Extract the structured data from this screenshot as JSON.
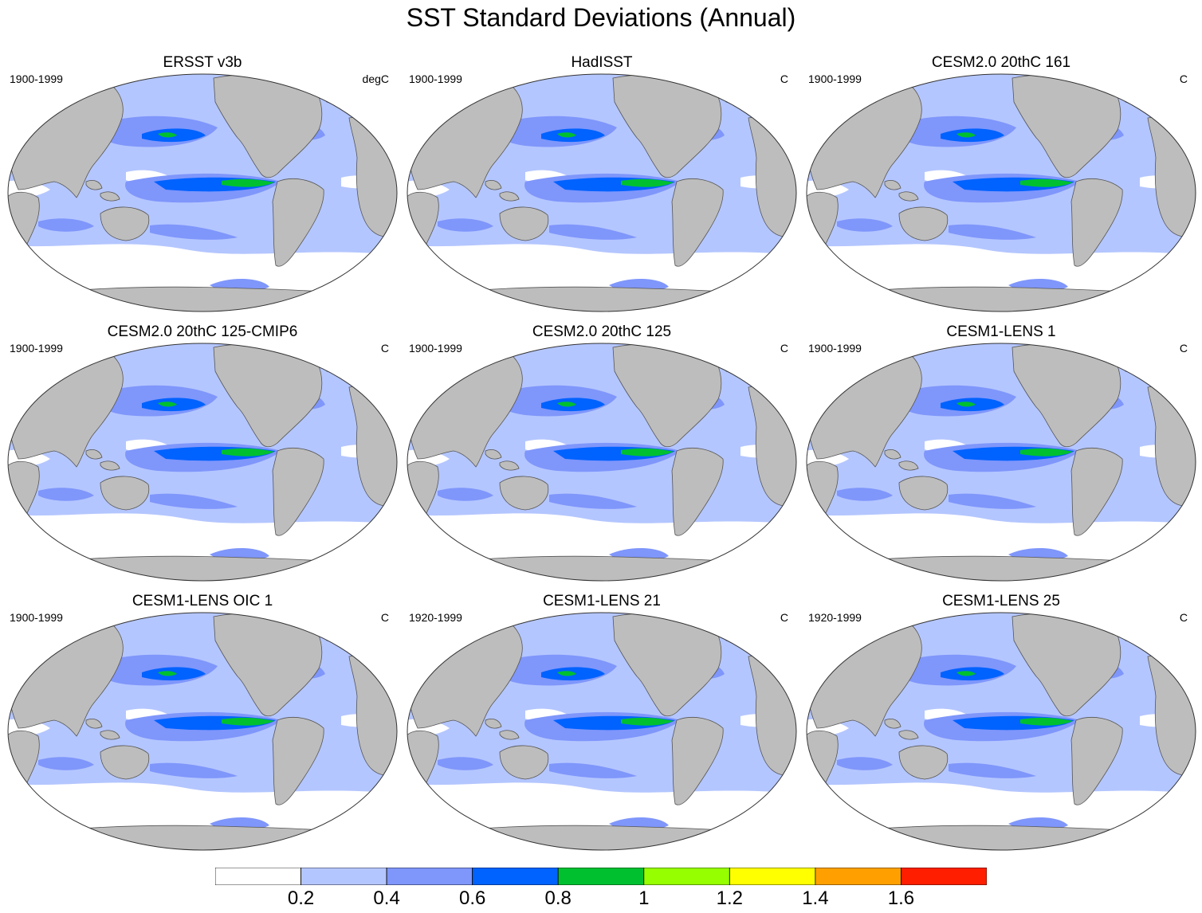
{
  "title": "SST Standard Deviations (Annual)",
  "panels": [
    {
      "title": "ERSST v3b",
      "period": "1900-1999",
      "unit": "degC"
    },
    {
      "title": "HadISST",
      "period": "1900-1999",
      "unit": "C"
    },
    {
      "title": "CESM2.0 20thC 161",
      "period": "1900-1999",
      "unit": "C"
    },
    {
      "title": "CESM2.0 20thC 125-CMIP6",
      "period": "1900-1999",
      "unit": "C"
    },
    {
      "title": "CESM2.0 20thC 125",
      "period": "1900-1999",
      "unit": "C"
    },
    {
      "title": "CESM1-LENS 1",
      "period": "1900-1999",
      "unit": "C"
    },
    {
      "title": "CESM1-LENS OIC 1",
      "period": "1900-1999",
      "unit": "C"
    },
    {
      "title": "CESM1-LENS 21",
      "period": "1920-1999",
      "unit": "C"
    },
    {
      "title": "CESM1-LENS 25",
      "period": "1920-1999",
      "unit": "C"
    }
  ],
  "colorbar": {
    "labels": [
      "0.2",
      "0.4",
      "0.6",
      "0.8",
      "1",
      "1.2",
      "1.4",
      "1.6"
    ],
    "colors": [
      "#ffffff",
      "#b4c6ff",
      "#7f96fb",
      "#0062ff",
      "#00c030",
      "#96ff00",
      "#ffff00",
      "#ffa000",
      "#ff1e00"
    ]
  },
  "colors": {
    "land": "#bdbdbd",
    "ocean_low": "#ffffff",
    "ocean_base": "#b4c6ff",
    "ocean_mid": "#7f96fb",
    "ocean_high": "#0062ff",
    "enso_peak": "#00c030"
  }
}
